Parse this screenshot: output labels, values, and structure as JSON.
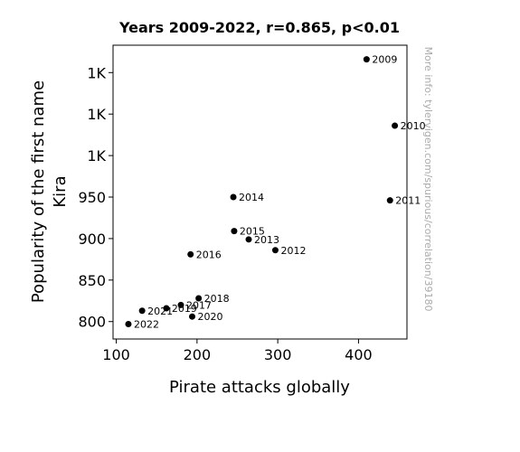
{
  "chart_data": {
    "type": "scatter",
    "title": "Years 2009-2022, r=0.865, p<0.01",
    "xlabel": "Pirate attacks globally",
    "ylabel": [
      "Popularity of the first name",
      "Kira"
    ],
    "xlim": [
      96,
      460
    ],
    "ylim": [
      779,
      1133
    ],
    "xticks": [
      100,
      200,
      300,
      400
    ],
    "yticks": [
      {
        "value": 800,
        "label": "800"
      },
      {
        "value": 850,
        "label": "850"
      },
      {
        "value": 900,
        "label": "900"
      },
      {
        "value": 950,
        "label": "950"
      },
      {
        "value": 1000,
        "label": "1K"
      },
      {
        "value": 1050,
        "label": "1K"
      },
      {
        "value": 1100,
        "label": "1K"
      }
    ],
    "grid": false,
    "points": [
      {
        "label": "2009",
        "x": 410,
        "y": 1116
      },
      {
        "label": "2010",
        "x": 445,
        "y": 1036
      },
      {
        "label": "2011",
        "x": 439,
        "y": 946
      },
      {
        "label": "2012",
        "x": 297,
        "y": 886
      },
      {
        "label": "2013",
        "x": 264,
        "y": 899
      },
      {
        "label": "2014",
        "x": 245,
        "y": 950
      },
      {
        "label": "2015",
        "x": 246,
        "y": 909
      },
      {
        "label": "2016",
        "x": 192,
        "y": 881
      },
      {
        "label": "2017",
        "x": 180,
        "y": 820
      },
      {
        "label": "2018",
        "x": 202,
        "y": 828
      },
      {
        "label": "2019",
        "x": 162,
        "y": 816
      },
      {
        "label": "2020",
        "x": 194,
        "y": 806
      },
      {
        "label": "2021",
        "x": 132,
        "y": 813
      },
      {
        "label": "2022",
        "x": 115,
        "y": 797
      }
    ],
    "marker_color": "#000000",
    "watermark": "More info: tylervigen.com/spurious/correlation/39180"
  }
}
